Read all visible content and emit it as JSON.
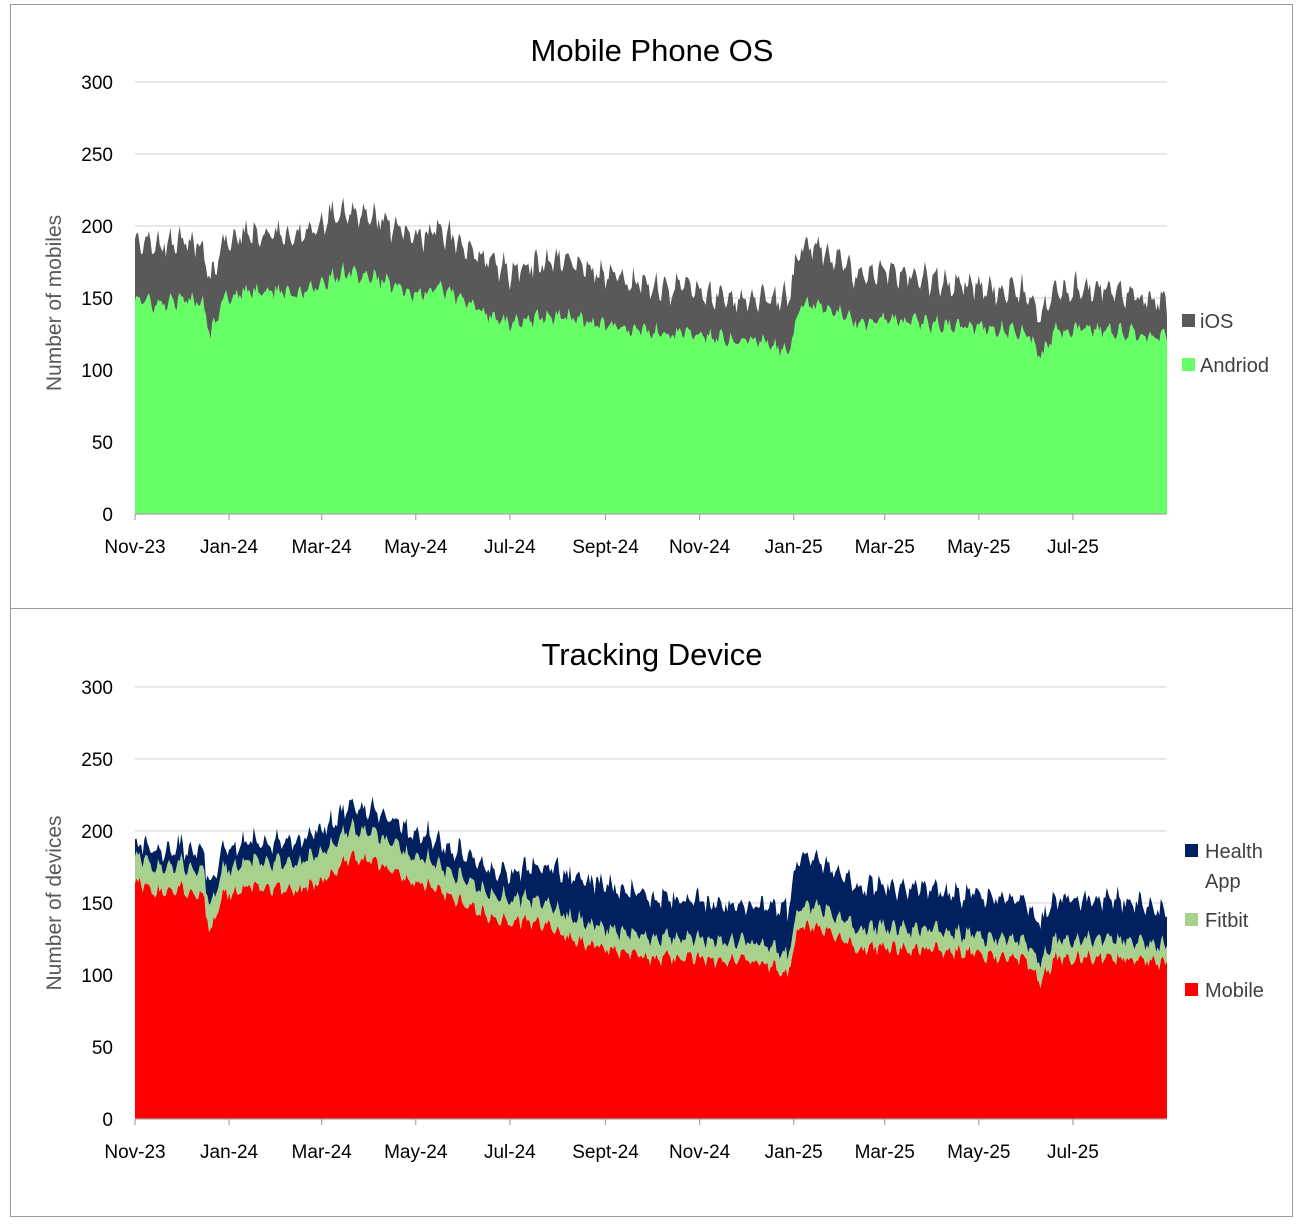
{
  "chart_data": [
    {
      "type": "area",
      "stacked": true,
      "title": "Mobile Phone OS",
      "ylabel": "Number of mobiles",
      "xlabel": "",
      "ylim": [
        0,
        300
      ],
      "yticks": [
        "0",
        "50",
        "100",
        "150",
        "200",
        "250",
        "300"
      ],
      "xticks": [
        "Nov-23",
        "Jan-24",
        "Mar-24",
        "May-24",
        "Jul-24",
        "Sept-24",
        "Nov-24",
        "Jan-25",
        "Mar-25",
        "May-25",
        "Jul-25"
      ],
      "x_range": [
        "2023-11-01",
        "2025-08-31"
      ],
      "grid": true,
      "legend_position": "right",
      "series": [
        {
          "name": "Andriod",
          "color": "#66ff66",
          "anchors": [
            [
              "2023-11-01",
              150
            ],
            [
              "2023-11-15",
              145
            ],
            [
              "2023-12-01",
              148
            ],
            [
              "2023-12-15",
              148
            ],
            [
              "2023-12-20",
              125
            ],
            [
              "2023-12-28",
              150
            ],
            [
              "2024-01-15",
              155
            ],
            [
              "2024-02-01",
              155
            ],
            [
              "2024-02-15",
              152
            ],
            [
              "2024-03-01",
              160
            ],
            [
              "2024-03-15",
              168
            ],
            [
              "2024-04-01",
              165
            ],
            [
              "2024-04-15",
              160
            ],
            [
              "2024-05-01",
              152
            ],
            [
              "2024-05-15",
              158
            ],
            [
              "2024-06-01",
              148
            ],
            [
              "2024-06-15",
              140
            ],
            [
              "2024-07-01",
              132
            ],
            [
              "2024-07-15",
              135
            ],
            [
              "2024-08-01",
              138
            ],
            [
              "2024-08-15",
              135
            ],
            [
              "2024-09-01",
              130
            ],
            [
              "2024-09-15",
              128
            ],
            [
              "2024-10-01",
              127
            ],
            [
              "2024-10-15",
              125
            ],
            [
              "2024-11-01",
              125
            ],
            [
              "2024-11-15",
              122
            ],
            [
              "2024-12-01",
              122
            ],
            [
              "2024-12-15",
              120
            ],
            [
              "2024-12-28",
              112
            ],
            [
              "2025-01-05",
              145
            ],
            [
              "2025-01-20",
              145
            ],
            [
              "2025-02-01",
              138
            ],
            [
              "2025-02-15",
              132
            ],
            [
              "2025-03-01",
              135
            ],
            [
              "2025-03-15",
              133
            ],
            [
              "2025-04-01",
              132
            ],
            [
              "2025-04-15",
              130
            ],
            [
              "2025-05-01",
              130
            ],
            [
              "2025-05-15",
              128
            ],
            [
              "2025-06-01",
              127
            ],
            [
              "2025-06-10",
              108
            ],
            [
              "2025-06-20",
              128
            ],
            [
              "2025-07-01",
              128
            ],
            [
              "2025-07-15",
              128
            ],
            [
              "2025-08-01",
              126
            ],
            [
              "2025-08-15",
              125
            ],
            [
              "2025-08-31",
              122
            ]
          ],
          "noise_amplitude": 7
        },
        {
          "name": "iOS",
          "color": "#595959",
          "anchors": [
            [
              "2023-11-01",
              42
            ],
            [
              "2023-12-01",
              40
            ],
            [
              "2024-01-01",
              40
            ],
            [
              "2024-02-01",
              40
            ],
            [
              "2024-03-01",
              42
            ],
            [
              "2024-04-01",
              42
            ],
            [
              "2024-05-01",
              40
            ],
            [
              "2024-06-01",
              38
            ],
            [
              "2024-07-01",
              36
            ],
            [
              "2024-08-01",
              40
            ],
            [
              "2024-09-01",
              36
            ],
            [
              "2024-10-01",
              32
            ],
            [
              "2024-11-01",
              30
            ],
            [
              "2024-12-01",
              28
            ],
            [
              "2025-01-05",
              42
            ],
            [
              "2025-02-01",
              35
            ],
            [
              "2025-03-01",
              33
            ],
            [
              "2025-04-01",
              30
            ],
            [
              "2025-05-01",
              28
            ],
            [
              "2025-06-01",
              28
            ],
            [
              "2025-07-01",
              28
            ],
            [
              "2025-08-01",
              28
            ],
            [
              "2025-08-31",
              25
            ]
          ],
          "noise_amplitude": 8
        }
      ]
    },
    {
      "type": "area",
      "stacked": true,
      "title": "Tracking Device",
      "ylabel": "Number of devices",
      "xlabel": "",
      "ylim": [
        0,
        300
      ],
      "yticks": [
        "0",
        "50",
        "100",
        "150",
        "200",
        "250",
        "300"
      ],
      "xticks": [
        "Nov-23",
        "Jan-24",
        "Mar-24",
        "May-24",
        "Jul-24",
        "Sept-24",
        "Nov-24",
        "Jan-25",
        "Mar-25",
        "May-25",
        "Jul-25"
      ],
      "x_range": [
        "2023-11-01",
        "2025-08-31"
      ],
      "grid": true,
      "legend_position": "right",
      "series": [
        {
          "name": "Mobile",
          "color": "#ff0000",
          "anchors": [
            [
              "2023-11-01",
              165
            ],
            [
              "2023-11-15",
              158
            ],
            [
              "2023-12-01",
              160
            ],
            [
              "2023-12-15",
              155
            ],
            [
              "2023-12-20",
              130
            ],
            [
              "2023-12-28",
              155
            ],
            [
              "2024-01-15",
              162
            ],
            [
              "2024-02-01",
              160
            ],
            [
              "2024-02-15",
              158
            ],
            [
              "2024-03-01",
              165
            ],
            [
              "2024-03-20",
              182
            ],
            [
              "2024-04-05",
              178
            ],
            [
              "2024-04-20",
              170
            ],
            [
              "2024-05-01",
              165
            ],
            [
              "2024-05-15",
              160
            ],
            [
              "2024-06-01",
              150
            ],
            [
              "2024-06-15",
              142
            ],
            [
              "2024-07-01",
              138
            ],
            [
              "2024-07-20",
              136
            ],
            [
              "2024-08-10",
              125
            ],
            [
              "2024-09-01",
              118
            ],
            [
              "2024-09-15",
              115
            ],
            [
              "2024-10-01",
              112
            ],
            [
              "2024-10-15",
              112
            ],
            [
              "2024-11-01",
              112
            ],
            [
              "2024-11-15",
              110
            ],
            [
              "2024-12-01",
              110
            ],
            [
              "2024-12-15",
              108
            ],
            [
              "2024-12-28",
              100
            ],
            [
              "2025-01-05",
              135
            ],
            [
              "2025-01-20",
              132
            ],
            [
              "2025-02-01",
              125
            ],
            [
              "2025-02-15",
              118
            ],
            [
              "2025-03-01",
              120
            ],
            [
              "2025-03-15",
              118
            ],
            [
              "2025-04-01",
              118
            ],
            [
              "2025-04-15",
              116
            ],
            [
              "2025-05-01",
              115
            ],
            [
              "2025-05-15",
              112
            ],
            [
              "2025-06-01",
              110
            ],
            [
              "2025-06-10",
              95
            ],
            [
              "2025-06-20",
              112
            ],
            [
              "2025-07-01",
              112
            ],
            [
              "2025-07-15",
              112
            ],
            [
              "2025-08-01",
              112
            ],
            [
              "2025-08-15",
              110
            ],
            [
              "2025-08-31",
              108
            ]
          ],
          "noise_amplitude": 6
        },
        {
          "name": "Fitbit",
          "color": "#a9d18e",
          "anchors": [
            [
              "2023-11-01",
              18
            ],
            [
              "2023-12-01",
              17
            ],
            [
              "2024-01-01",
              18
            ],
            [
              "2024-02-01",
              18
            ],
            [
              "2024-03-01",
              20
            ],
            [
              "2024-04-01",
              20
            ],
            [
              "2024-05-01",
              18
            ],
            [
              "2024-06-01",
              17
            ],
            [
              "2024-07-01",
              16
            ],
            [
              "2024-08-01",
              15
            ],
            [
              "2024-09-01",
              14
            ],
            [
              "2024-10-01",
              14
            ],
            [
              "2024-11-01",
              14
            ],
            [
              "2024-12-01",
              13
            ],
            [
              "2025-01-05",
              14
            ],
            [
              "2025-02-01",
              14
            ],
            [
              "2025-03-01",
              14
            ],
            [
              "2025-04-01",
              14
            ],
            [
              "2025-05-01",
              13
            ],
            [
              "2025-06-01",
              13
            ],
            [
              "2025-07-01",
              13
            ],
            [
              "2025-08-01",
              13
            ],
            [
              "2025-08-31",
              12
            ]
          ],
          "noise_amplitude": 3
        },
        {
          "name": "Health App",
          "color": "#002060",
          "anchors": [
            [
              "2023-11-01",
              10
            ],
            [
              "2023-12-01",
              12
            ],
            [
              "2024-01-01",
              14
            ],
            [
              "2024-02-01",
              14
            ],
            [
              "2024-03-01",
              16
            ],
            [
              "2024-04-01",
              16
            ],
            [
              "2024-05-01",
              16
            ],
            [
              "2024-06-01",
              16
            ],
            [
              "2024-07-01",
              18
            ],
            [
              "2024-08-01",
              28
            ],
            [
              "2024-09-01",
              30
            ],
            [
              "2024-10-01",
              28
            ],
            [
              "2024-11-01",
              26
            ],
            [
              "2024-12-01",
              24
            ],
            [
              "2025-01-05",
              35
            ],
            [
              "2025-02-01",
              30
            ],
            [
              "2025-03-01",
              28
            ],
            [
              "2025-04-01",
              28
            ],
            [
              "2025-05-01",
              28
            ],
            [
              "2025-06-01",
              28
            ],
            [
              "2025-07-01",
              28
            ],
            [
              "2025-08-01",
              28
            ],
            [
              "2025-08-31",
              24
            ]
          ],
          "noise_amplitude": 6
        }
      ]
    }
  ],
  "legends": {
    "top": [
      {
        "label": "iOS",
        "color": "#595959"
      },
      {
        "label": "Andriod",
        "color": "#66ff66"
      }
    ],
    "bottom": [
      {
        "label_lines": [
          "Health",
          "App"
        ],
        "color": "#002060"
      },
      {
        "label_lines": [
          "Fitbit"
        ],
        "color": "#a9d18e"
      },
      {
        "label_lines": [
          "Mobile"
        ],
        "color": "#ff0000"
      }
    ]
  }
}
